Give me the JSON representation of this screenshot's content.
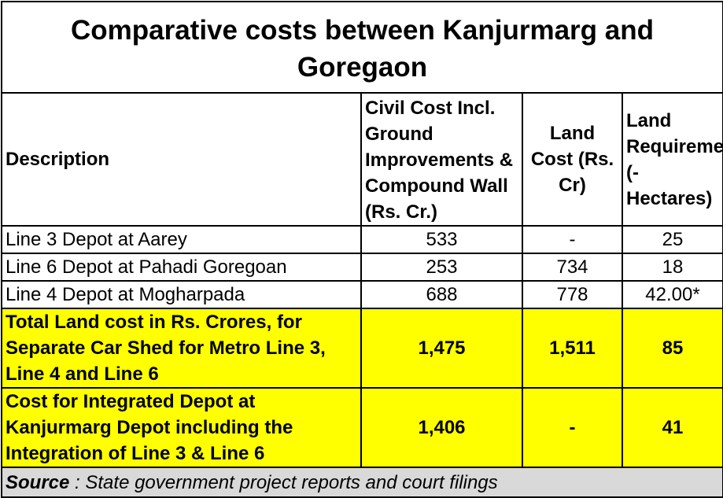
{
  "title": "Comparative costs between Kanjurmarg and Goregaon",
  "headers": {
    "description": "Description",
    "civil_cost": "Civil Cost Incl. Ground Improvements & Compound Wall (Rs. Cr.)",
    "land_cost": "Land Cost (Rs. Cr)",
    "land_requirement": "Land Requirement (- Hectares)"
  },
  "rows": [
    {
      "description": "Line 3 Depot at Aarey",
      "civil_cost": "533",
      "land_cost": "-",
      "land_requirement": "25"
    },
    {
      "description": "Line 6 Depot at Pahadi Goregoan",
      "civil_cost": "253",
      "land_cost": "734",
      "land_requirement": "18"
    },
    {
      "description": "Line 4 Depot at Mogharpada",
      "civil_cost": "688",
      "land_cost": "778",
      "land_requirement": "42.00*"
    }
  ],
  "highlight_rows": [
    {
      "description": "Total Land cost in Rs. Crores, for Separate Car Shed for Metro Line 3, Line 4 and Line 6",
      "civil_cost": "1,475",
      "land_cost": "1,511",
      "land_requirement": "85"
    },
    {
      "description": "Cost for Integrated Depot at Kanjurmarg Depot including the Integration of Line 3 & Line 6",
      "civil_cost": "1,406",
      "land_cost": "-",
      "land_requirement": "41"
    }
  ],
  "source": {
    "label": "Source",
    "text": " : State government project reports and court filings"
  },
  "colors": {
    "highlight": "#ffff00",
    "source_bg": "#d9d9d9"
  }
}
